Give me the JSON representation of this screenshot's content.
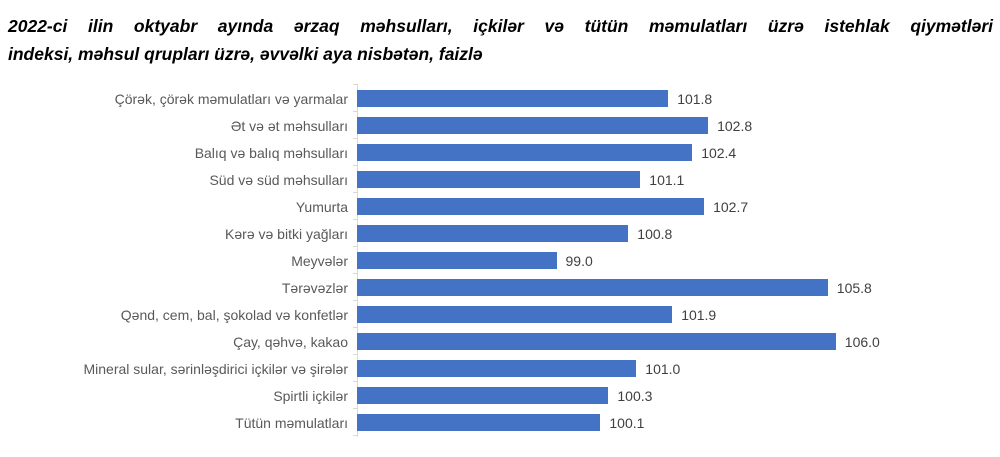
{
  "header": {
    "title_line1": "2022-ci ilin oktyabr ayında ərzaq məhsulları, içkilər və tütün məmulatları üzrə istehlak qiymətləri",
    "title_line2": "indeksi, məhsul qrupları üzrə, əvvəlki aya nisbətən, faizlə"
  },
  "chart_data": {
    "type": "bar",
    "orientation": "horizontal",
    "title": "2022-ci ilin oktyabr ayında ərzaq məhsulları, içkilər və tütün məmulatları üzrə istehlak qiymətləri indeksi, məhsul qrupları üzrə, əvvəlki aya nisbətən, faizlə",
    "categories": [
      "Çörək, çörək məmulatları və yarmalar",
      "Ət və ət məhsulları",
      "Balıq və balıq məhsulları",
      "Süd və süd məhsulları",
      "Yumurta",
      "Kərə və bitki yağları",
      "Meyvələr",
      "Tərəvəzlər",
      "Qənd, cem, bal, şokolad və konfetlər",
      "Çay, qəhvə, kakao",
      "Mineral sular, sərinləşdirici içkilər və şirələr",
      "Spirtli içkilər",
      "Tütün məmulatları"
    ],
    "values": [
      101.8,
      102.8,
      102.4,
      101.1,
      102.7,
      100.8,
      99.0,
      105.8,
      101.9,
      106.0,
      101.0,
      100.3,
      100.1
    ],
    "value_label_format": "one-decimal",
    "xlim": [
      94,
      106
    ],
    "grid": false,
    "legend": false,
    "data_labels_position": "outside-end",
    "bar_color": "#4472C4",
    "axis_color": "#D9D9D9",
    "category_label_color": "#595959",
    "value_label_color": "#404040"
  }
}
